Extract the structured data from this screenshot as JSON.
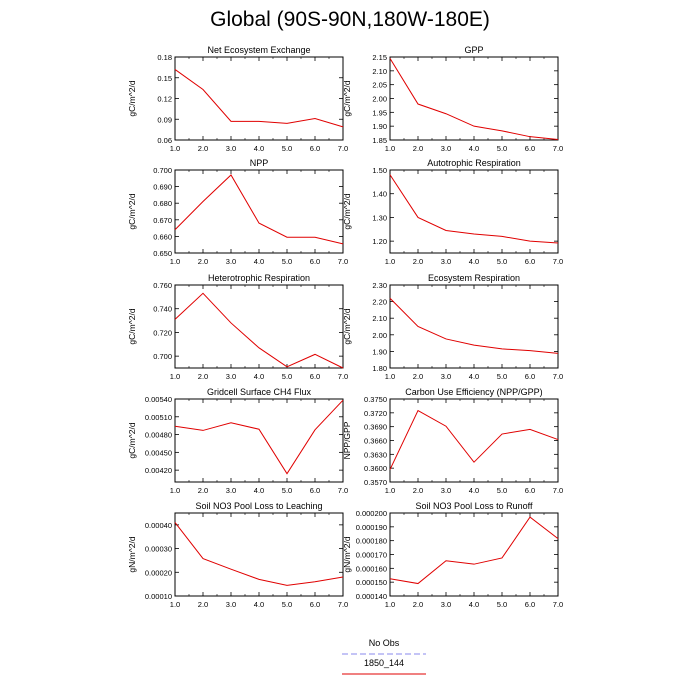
{
  "title": "Global (90S-90N,180W-180E)",
  "legend": [
    {
      "label": "No Obs",
      "color": "#8888ee",
      "dash": true
    },
    {
      "label": "1850_144",
      "color": "#e00000",
      "dash": false
    }
  ],
  "chart_data": [
    {
      "type": "line",
      "title": "Net Ecosystem Exchange",
      "ylabel": "gC/m^2/d",
      "x": [
        1,
        2,
        3,
        4,
        5,
        6,
        7
      ],
      "xlim": [
        1,
        7
      ],
      "xticks": [
        "1.0",
        "2.0",
        "3.0",
        "4.0",
        "5.0",
        "6.0",
        "7.0"
      ],
      "ylim": [
        0.06,
        0.18
      ],
      "yticks": [
        "0.06",
        "0.09",
        "0.12",
        "0.15",
        "0.18"
      ],
      "series": [
        {
          "color": "#e00000",
          "values": [
            0.162,
            0.133,
            0.087,
            0.087,
            0.084,
            0.091,
            0.079
          ]
        }
      ]
    },
    {
      "type": "line",
      "title": "GPP",
      "ylabel": "gC/m^2/d",
      "x": [
        1,
        2,
        3,
        4,
        5,
        6,
        7
      ],
      "xlim": [
        1,
        7
      ],
      "xticks": [
        "1.0",
        "2.0",
        "3.0",
        "4.0",
        "5.0",
        "6.0",
        "7.0"
      ],
      "ylim": [
        1.85,
        2.15
      ],
      "yticks": [
        "1.85",
        "1.90",
        "1.95",
        "2.00",
        "2.05",
        "2.10",
        "2.15"
      ],
      "series": [
        {
          "color": "#e00000",
          "values": [
            2.145,
            1.98,
            1.945,
            1.9,
            1.883,
            1.862,
            1.852
          ]
        }
      ]
    },
    {
      "type": "line",
      "title": "NPP",
      "ylabel": "gC/m^2/d",
      "x": [
        1,
        2,
        3,
        4,
        5,
        6,
        7
      ],
      "xlim": [
        1,
        7
      ],
      "xticks": [
        "1.0",
        "2.0",
        "3.0",
        "4.0",
        "5.0",
        "6.0",
        "7.0"
      ],
      "ylim": [
        0.65,
        0.7
      ],
      "yticks": [
        "0.650",
        "0.660",
        "0.670",
        "0.680",
        "0.690",
        "0.700"
      ],
      "series": [
        {
          "color": "#e00000",
          "values": [
            0.664,
            0.681,
            0.697,
            0.668,
            0.6595,
            0.6595,
            0.6555
          ]
        }
      ]
    },
    {
      "type": "line",
      "title": "Autotrophic Respiration",
      "ylabel": "gC/m^2/d",
      "x": [
        1,
        2,
        3,
        4,
        5,
        6,
        7
      ],
      "xlim": [
        1,
        7
      ],
      "xticks": [
        "1.0",
        "2.0",
        "3.0",
        "4.0",
        "5.0",
        "6.0",
        "7.0"
      ],
      "ylim": [
        1.15,
        1.5
      ],
      "yticks": [
        "1.20",
        "1.30",
        "1.40",
        "1.50"
      ],
      "series": [
        {
          "color": "#e00000",
          "values": [
            1.48,
            1.3,
            1.245,
            1.23,
            1.22,
            1.2,
            1.192
          ]
        }
      ]
    },
    {
      "type": "line",
      "title": "Heterotrophic Respiration",
      "ylabel": "gC/m^2/d",
      "x": [
        1,
        2,
        3,
        4,
        5,
        6,
        7
      ],
      "xlim": [
        1,
        7
      ],
      "xticks": [
        "1.0",
        "2.0",
        "3.0",
        "4.0",
        "5.0",
        "6.0",
        "7.0"
      ],
      "ylim": [
        0.69,
        0.76
      ],
      "yticks": [
        "0.700",
        "0.720",
        "0.740",
        "0.760"
      ],
      "series": [
        {
          "color": "#e00000",
          "values": [
            0.731,
            0.753,
            0.728,
            0.707,
            0.691,
            0.7015,
            0.69
          ]
        }
      ]
    },
    {
      "type": "line",
      "title": "Ecosystem Respiration",
      "ylabel": "gC/m^2/d",
      "x": [
        1,
        2,
        3,
        4,
        5,
        6,
        7
      ],
      "xlim": [
        1,
        7
      ],
      "xticks": [
        "1.0",
        "2.0",
        "3.0",
        "4.0",
        "5.0",
        "6.0",
        "7.0"
      ],
      "ylim": [
        1.8,
        2.3
      ],
      "yticks": [
        "1.80",
        "1.90",
        "2.00",
        "2.10",
        "2.20",
        "2.30"
      ],
      "series": [
        {
          "color": "#e00000",
          "values": [
            2.22,
            2.05,
            1.975,
            1.938,
            1.915,
            1.905,
            1.888
          ]
        }
      ]
    },
    {
      "type": "line",
      "title": "Gridcell Surface CH4 Flux",
      "ylabel": "gC/m^2/d",
      "x": [
        1,
        2,
        3,
        4,
        5,
        6,
        7
      ],
      "xlim": [
        1,
        7
      ],
      "xticks": [
        "1.0",
        "2.0",
        "3.0",
        "4.0",
        "5.0",
        "6.0",
        "7.0"
      ],
      "ylim": [
        0.004,
        0.0054
      ],
      "yticks": [
        "0.00420",
        "0.00450",
        "0.00480",
        "0.00510",
        "0.00540"
      ],
      "series": [
        {
          "color": "#e00000",
          "values": [
            0.00494,
            0.00487,
            0.005,
            0.00489,
            0.00414,
            0.00488,
            0.00538
          ]
        }
      ]
    },
    {
      "type": "line",
      "title": "Carbon Use Efficiency (NPP/GPP)",
      "ylabel": "NPP/GPP",
      "x": [
        1,
        2,
        3,
        4,
        5,
        6,
        7
      ],
      "xlim": [
        1,
        7
      ],
      "xticks": [
        "1.0",
        "2.0",
        "3.0",
        "4.0",
        "5.0",
        "6.0",
        "7.0"
      ],
      "ylim": [
        0.357,
        0.375
      ],
      "yticks": [
        "0.3570",
        "0.3600",
        "0.3630",
        "0.3660",
        "0.3690",
        "0.3720",
        "0.3750"
      ],
      "series": [
        {
          "color": "#e00000",
          "values": [
            0.3597,
            0.3725,
            0.3691,
            0.3613,
            0.3674,
            0.3684,
            0.3662
          ]
        }
      ]
    },
    {
      "type": "line",
      "title": "Soil NO3 Pool Loss to Leaching",
      "ylabel": "gN/m^2/d",
      "x": [
        1,
        2,
        3,
        4,
        5,
        6,
        7
      ],
      "xlim": [
        1,
        7
      ],
      "xticks": [
        "1.0",
        "2.0",
        "3.0",
        "4.0",
        "5.0",
        "6.0",
        "7.0"
      ],
      "ylim": [
        0.0001,
        0.00045
      ],
      "yticks": [
        "0.00010",
        "0.00020",
        "0.00030",
        "0.00040"
      ],
      "series": [
        {
          "color": "#e00000",
          "values": [
            0.00041,
            0.000258,
            0.000213,
            0.00017,
            0.000145,
            0.00016,
            0.00018
          ]
        }
      ]
    },
    {
      "type": "line",
      "title": "Soil NO3 Pool Loss to Runoff",
      "ylabel": "gN/m^2/d",
      "x": [
        1,
        2,
        3,
        4,
        5,
        6,
        7
      ],
      "xlim": [
        1,
        7
      ],
      "xticks": [
        "1.0",
        "2.0",
        "3.0",
        "4.0",
        "5.0",
        "6.0",
        "7.0"
      ],
      "ylim": [
        0.00014,
        0.0002
      ],
      "yticks": [
        "0.000140",
        "0.000150",
        "0.000160",
        "0.000170",
        "0.000180",
        "0.000190",
        "0.000200"
      ],
      "series": [
        {
          "color": "#e00000",
          "values": [
            0.0001525,
            0.000149,
            0.0001655,
            0.000163,
            0.0001675,
            0.000197,
            0.0001815
          ]
        }
      ]
    }
  ]
}
